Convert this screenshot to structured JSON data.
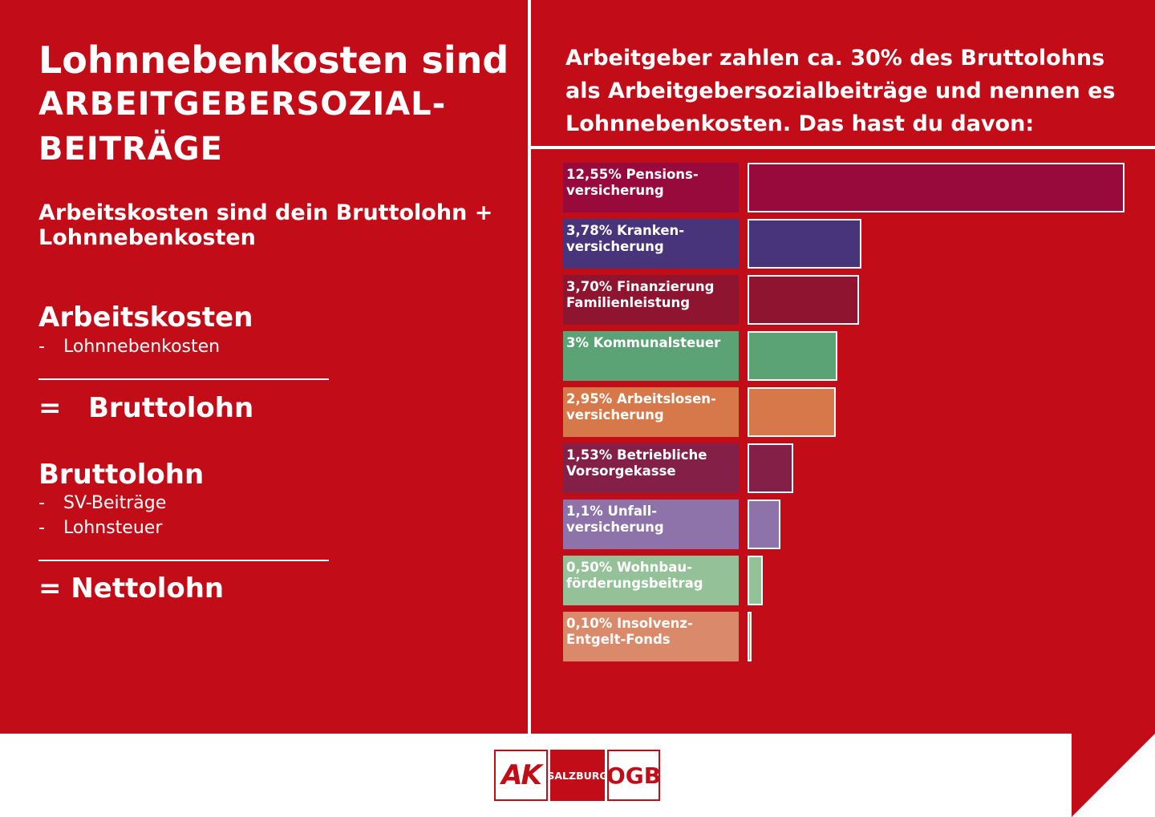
{
  "left": {
    "title_line1": "Lohnnebenkosten sind",
    "title_line2": "ARBEITGEBERSOZIAL-",
    "title_line3": "BEITRÄGE",
    "subtitle_line1": "Arbeitskosten sind dein Bruttolohn +",
    "subtitle_line2": "Lohnnebenkosten",
    "block1": {
      "head": "Arbeitskosten",
      "items": [
        "Lohnnebenkosten"
      ],
      "result_op": "=",
      "result": "Bruttolohn"
    },
    "block2": {
      "head": "Bruttolohn",
      "items": [
        "SV-Beiträge",
        "Lohnsteuer"
      ],
      "result": "= Nettolohn"
    },
    "dash": "-"
  },
  "right": {
    "heading_line1": "Arbeitgeber zahlen ca. 30% des Bruttolohns",
    "heading_line2": "als Arbeitgebersozialbeiträge und nennen es",
    "heading_line3": "Lohnnebenkosten. Das hast du davon:"
  },
  "chart_data": {
    "type": "bar",
    "orientation": "horizontal",
    "categories": [
      [
        "12,55% Pensions-",
        "versicherung"
      ],
      [
        "3,78% Kranken-",
        "versicherung"
      ],
      [
        "3,70% Finanzierung",
        "Familienleistung"
      ],
      [
        "3% Kommunalsteuer"
      ],
      [
        "2,95% Arbeitslosen-",
        "versicherung"
      ],
      [
        "1,53% Betriebliche",
        "Vorsorgekasse"
      ],
      [
        "1,1% Unfall-",
        "versicherung"
      ],
      [
        "0,50% Wohnbau-",
        "förderungsbeitrag"
      ],
      [
        "0,10% Insolvenz-",
        "Entgelt-Fonds"
      ]
    ],
    "values": [
      12.55,
      3.78,
      3.7,
      3,
      2.95,
      1.53,
      1.1,
      0.5,
      0.1
    ],
    "unit": "%",
    "colors": [
      "#990a3c",
      "#47347a",
      "#8e1430",
      "#5ba374",
      "#d6784a",
      "#841f47",
      "#8d73aa",
      "#94c197",
      "#da8a6a"
    ],
    "xlim": [
      0,
      12.55
    ],
    "grid": false,
    "legend": "none"
  },
  "logos": {
    "ak": "AK",
    "salzburg": "SALZBURG",
    "ogb": "OGB"
  },
  "colors": {
    "background_red": "#c20c18",
    "text": "#ffffff"
  }
}
